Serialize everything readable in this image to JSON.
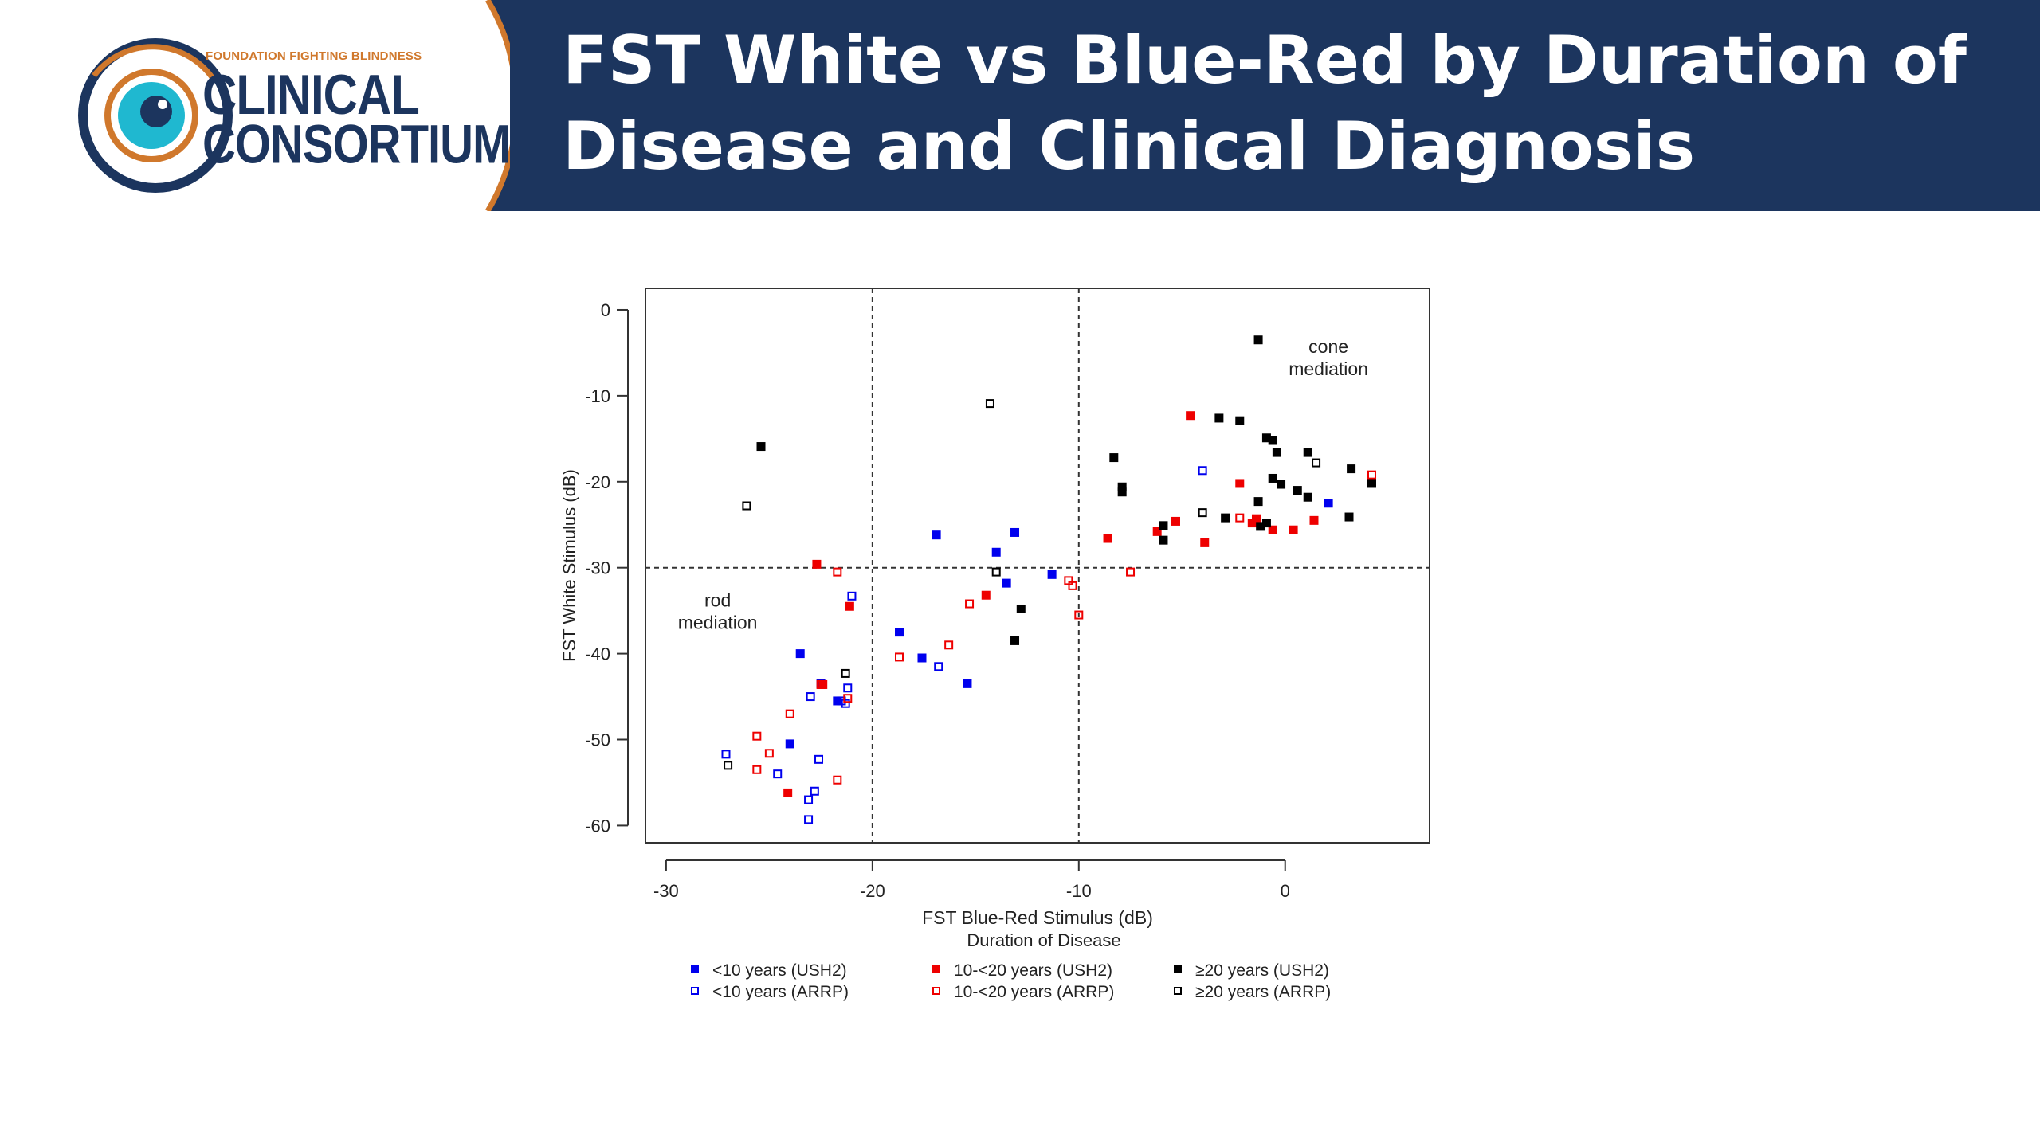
{
  "header": {
    "title": "FST White vs Blue-Red by Duration of Disease and Clinical Diagnosis",
    "logo_subtitle": "FOUNDATION FIGHTING BLINDNESS",
    "logo_line1": "CLINICAL",
    "logo_line2": "CONSORTIUM"
  },
  "colors": {
    "header_bg": "#1c355e",
    "logo_accent": "#d0782c",
    "logo_eye": "#1fb8d0",
    "usher_lt10": "#0000ee",
    "usher_10to20": "#ee0000",
    "usher_ge20": "#000000"
  },
  "chart_data": {
    "type": "scatter",
    "title": "",
    "xlabel": "FST Blue-Red Stimulus (dB)",
    "ylabel": "FST White Stimulus (dB)",
    "xlim": [
      -31,
      7
    ],
    "ylim": [
      -62,
      2.5
    ],
    "xticks": [
      -30,
      -20,
      -10,
      0
    ],
    "yticks": [
      0,
      -10,
      -20,
      -30,
      -40,
      -50,
      -60
    ],
    "reference_lines": {
      "vertical": [
        -20,
        -10
      ],
      "horizontal": [
        -30
      ]
    },
    "annotations": [
      {
        "text": "rod\nmediation",
        "x": -27.5,
        "y": -34.5
      },
      {
        "text": "cone\nmediation",
        "x": 2.1,
        "y": -5
      },
      {
        "text": "Duration of Disease",
        "role": "legend-title"
      }
    ],
    "legend_title": "Duration of Disease",
    "legend_position": "bottom",
    "grid": false,
    "series": [
      {
        "name": "<10 years (USH2)",
        "color": "#0000ee",
        "marker": "filled-square",
        "points": [
          [
            -23.5,
            -40
          ],
          [
            -24,
            -50.5
          ],
          [
            -22.5,
            -43.5
          ],
          [
            -21.7,
            -45.5
          ],
          [
            -18.7,
            -37.5
          ],
          [
            -17.6,
            -40.5
          ],
          [
            -16.9,
            -26.2
          ],
          [
            -15.4,
            -43.5
          ],
          [
            -14,
            -28.2
          ],
          [
            -13.1,
            -25.9
          ],
          [
            -13.5,
            -31.8
          ],
          [
            -11.3,
            -30.8
          ],
          [
            2.1,
            -22.5
          ]
        ]
      },
      {
        "name": "<10 years (ARRP)",
        "color": "#0000ee",
        "marker": "open-square",
        "points": [
          [
            -21,
            -33.3
          ],
          [
            -23,
            -45
          ],
          [
            -21.2,
            -44
          ],
          [
            -21.5,
            -45.5
          ],
          [
            -21.3,
            -45.8
          ],
          [
            -27.1,
            -51.7
          ],
          [
            -24.6,
            -54
          ],
          [
            -22.6,
            -52.3
          ],
          [
            -22.8,
            -56
          ],
          [
            -23.1,
            -57
          ],
          [
            -23.1,
            -59.3
          ],
          [
            -16.8,
            -41.5
          ],
          [
            -4,
            -18.7
          ]
        ]
      },
      {
        "name": "10-<20 years (USH2)",
        "color": "#ee0000",
        "marker": "filled-square",
        "points": [
          [
            -22.7,
            -29.6
          ],
          [
            -21.1,
            -34.5
          ],
          [
            -22.4,
            -43.6
          ],
          [
            -24.1,
            -56.2
          ],
          [
            -14.5,
            -33.2
          ],
          [
            -8.6,
            -26.6
          ],
          [
            -6.2,
            -25.8
          ],
          [
            -5.3,
            -24.6
          ],
          [
            -4.6,
            -12.3
          ],
          [
            -3.9,
            -27.1
          ],
          [
            -2.2,
            -20.2
          ],
          [
            -1.4,
            -24.3
          ],
          [
            -0.6,
            -25.6
          ],
          [
            -1.6,
            -24.8
          ],
          [
            0.4,
            -25.6
          ],
          [
            1.4,
            -24.5
          ]
        ]
      },
      {
        "name": "10-<20 years (ARRP)",
        "color": "#ee0000",
        "marker": "open-square",
        "points": [
          [
            -21.7,
            -30.5
          ],
          [
            -22.5,
            -43.6
          ],
          [
            -21.2,
            -45.2
          ],
          [
            -24,
            -47
          ],
          [
            -25.6,
            -49.6
          ],
          [
            -25,
            -51.6
          ],
          [
            -25.6,
            -53.5
          ],
          [
            -21.7,
            -54.7
          ],
          [
            -18.7,
            -40.4
          ],
          [
            -16.3,
            -39
          ],
          [
            -15.3,
            -34.2
          ],
          [
            -10.5,
            -31.5
          ],
          [
            -10.3,
            -32.1
          ],
          [
            -10,
            -35.5
          ],
          [
            -7.5,
            -30.5
          ],
          [
            -2.2,
            -24.2
          ],
          [
            4.2,
            -19.2
          ]
        ]
      },
      {
        "name": "≥20 years (USH2)",
        "color": "#000000",
        "marker": "filled-square",
        "points": [
          [
            -25.4,
            -15.9
          ],
          [
            -12.8,
            -34.8
          ],
          [
            -13.1,
            -38.5
          ],
          [
            -8.3,
            -17.2
          ],
          [
            -7.9,
            -21.2
          ],
          [
            -7.9,
            -20.6
          ],
          [
            -5.9,
            -25.1
          ],
          [
            -5.9,
            -26.8
          ],
          [
            -3.2,
            -12.6
          ],
          [
            -2.2,
            -12.9
          ],
          [
            -1.3,
            -3.5
          ],
          [
            -0.9,
            -14.9
          ],
          [
            -0.6,
            -15.2
          ],
          [
            -0.4,
            -16.6
          ],
          [
            1.1,
            -16.6
          ],
          [
            -0.6,
            -19.6
          ],
          [
            -0.2,
            -20.3
          ],
          [
            0.6,
            -21
          ],
          [
            1.1,
            -21.8
          ],
          [
            -1.3,
            -22.3
          ],
          [
            -2.9,
            -24.2
          ],
          [
            -0.9,
            -24.8
          ],
          [
            -1.2,
            -25.2
          ],
          [
            3.2,
            -18.5
          ],
          [
            4.2,
            -20.2
          ],
          [
            3.1,
            -24.1
          ]
        ]
      },
      {
        "name": "≥20 years (ARRP)",
        "color": "#000000",
        "marker": "open-square",
        "points": [
          [
            -26.1,
            -22.8
          ],
          [
            -14.3,
            -10.9
          ],
          [
            -14,
            -30.5
          ],
          [
            -21.3,
            -42.3
          ],
          [
            -27,
            -53
          ],
          [
            -4,
            -23.6
          ],
          [
            1.5,
            -17.8
          ]
        ]
      }
    ]
  }
}
